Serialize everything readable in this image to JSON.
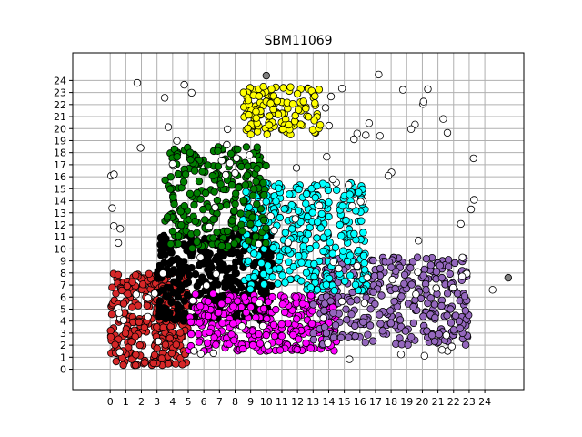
{
  "chart_data": {
    "type": "scatter",
    "title": "SBM11069",
    "xlabel": "",
    "ylabel": "",
    "xlim": [
      -2.4,
      26.5
    ],
    "ylim": [
      -1.7,
      26.3
    ],
    "xticks": [
      0,
      1,
      2,
      3,
      4,
      5,
      6,
      7,
      8,
      9,
      10,
      11,
      12,
      13,
      14,
      15,
      16,
      17,
      18,
      19,
      20,
      21,
      22,
      23,
      24
    ],
    "yticks": [
      0,
      1,
      2,
      3,
      4,
      5,
      6,
      7,
      8,
      9,
      10,
      11,
      12,
      13,
      14,
      15,
      16,
      17,
      18,
      19,
      20,
      21,
      22,
      23,
      24
    ],
    "grid": true,
    "clusters": [
      {
        "color": "#d62728",
        "region": {
          "x": [
            0.0,
            5.0
          ],
          "y": [
            0.3,
            8.0
          ]
        },
        "count": 300
      },
      {
        "color": "#000000",
        "region": {
          "x": [
            3.0,
            10.5
          ],
          "y": [
            4.0,
            11.5
          ]
        },
        "count": 340
      },
      {
        "color": "#ff00ff",
        "region": {
          "x": [
            5.0,
            14.5
          ],
          "y": [
            1.5,
            6.3
          ]
        },
        "count": 300
      },
      {
        "color": "#9467bd",
        "region": {
          "x": [
            13.0,
            23.0
          ],
          "y": [
            2.0,
            9.3
          ]
        },
        "count": 320
      },
      {
        "color": "#00ffff",
        "region": {
          "x": [
            8.5,
            16.5
          ],
          "y": [
            6.5,
            15.5
          ]
        },
        "count": 320
      },
      {
        "color": "#007f00",
        "region": {
          "x": [
            3.5,
            10.0
          ],
          "y": [
            10.0,
            18.5
          ]
        },
        "count": 240
      },
      {
        "color": "#ffff00",
        "region": {
          "x": [
            8.5,
            13.5
          ],
          "y": [
            19.5,
            23.5
          ]
        },
        "count": 130
      },
      {
        "color": "#ffffff",
        "region": {
          "x": [
            0.0,
            23.5
          ],
          "y": [
            0.5,
            24.5
          ]
        },
        "count": 110
      }
    ],
    "outliers": [
      {
        "x": 25.5,
        "y": 7.6,
        "color": "#808080"
      },
      {
        "x": 10.0,
        "y": 24.4,
        "color": "#808080"
      },
      {
        "x": 24.5,
        "y": 6.6,
        "color": "#ffffff"
      }
    ]
  }
}
